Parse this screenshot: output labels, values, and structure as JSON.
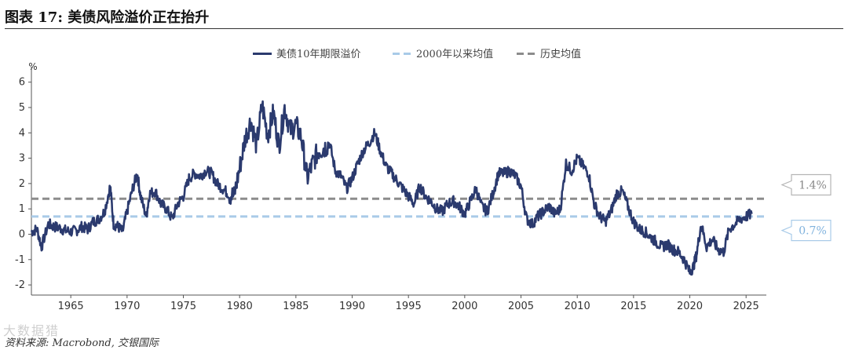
{
  "figure": {
    "title": "图表 17: 美债风险溢价正在抬升",
    "source": "资料来源: Macrobond, 交银国际",
    "watermark": "大数据猎"
  },
  "colors": {
    "series_main": "#2b3a6e",
    "line_2000": "#a9cbe8",
    "line_hist": "#8c8c8c",
    "tag_2000_border": "#a9cbe8",
    "tag_2000_text": "#7fb2dd",
    "tag_hist_border": "#b5b5b5",
    "tag_hist_text": "#888888"
  },
  "chart_data": {
    "type": "line",
    "unit_label": "%",
    "x_ticks": [
      1965,
      1970,
      1975,
      1980,
      1985,
      1990,
      1995,
      2000,
      2005,
      2010,
      2015,
      2020,
      2025
    ],
    "y_ticks": [
      6,
      5,
      4,
      3,
      2,
      1,
      0,
      -1,
      -2
    ],
    "xlim": [
      1961.5,
      2026.8
    ],
    "ylim": [
      -2.4,
      6.3
    ],
    "grid": false,
    "legend_placement": "top-center",
    "series": [
      {
        "name": "美债10年期限溢价",
        "x": [
          1961.5,
          1962,
          1962.4,
          1963,
          1963.5,
          1964,
          1964.5,
          1965,
          1965.5,
          1966,
          1966.5,
          1967,
          1967.5,
          1968,
          1968.5,
          1968.8,
          1969.2,
          1969.6,
          1970,
          1970.5,
          1970.9,
          1971.2,
          1971.7,
          1972,
          1972.5,
          1973,
          1973.5,
          1974,
          1974.5,
          1975,
          1975.5,
          1976,
          1976.5,
          1977,
          1977.5,
          1978,
          1978.5,
          1979,
          1979.5,
          1980,
          1980.5,
          1981,
          1981.5,
          1982,
          1982.5,
          1983,
          1983.5,
          1984,
          1984.5,
          1985,
          1985.5,
          1986,
          1986.5,
          1987,
          1987.5,
          1988,
          1988.5,
          1989,
          1989.5,
          1990,
          1990.5,
          1991,
          1991.5,
          1992,
          1992.5,
          1993,
          1993.5,
          1994,
          1994.5,
          1995,
          1995.5,
          1996,
          1996.5,
          1997,
          1997.5,
          1998,
          1998.5,
          1999,
          1999.5,
          2000,
          2000.5,
          2001,
          2001.5,
          2002,
          2002.5,
          2003,
          2003.5,
          2004,
          2004.5,
          2005,
          2005.5,
          2006,
          2006.5,
          2007,
          2007.5,
          2008,
          2008.5,
          2009,
          2009.5,
          2010,
          2010.5,
          2011,
          2011.5,
          2012,
          2012.5,
          2013,
          2013.5,
          2014,
          2014.5,
          2015,
          2015.5,
          2016,
          2016.5,
          2017,
          2017.5,
          2018,
          2018.5,
          2019,
          2019.5,
          2020,
          2020.3,
          2020.6,
          2021,
          2021.5,
          2022,
          2022.5,
          2023,
          2023.5,
          2024,
          2024.5,
          2025,
          2025.5
        ],
        "values": [
          0.1,
          0.2,
          -0.5,
          0.4,
          0.3,
          0.25,
          0.15,
          0.1,
          0.15,
          0.3,
          0.2,
          0.5,
          0.6,
          0.9,
          1.9,
          0.4,
          0.3,
          0.1,
          0.9,
          1.8,
          2.4,
          1.5,
          0.7,
          1.6,
          1.7,
          1.2,
          1.0,
          0.6,
          1.2,
          1.5,
          2.2,
          2.4,
          2.3,
          2.5,
          2.4,
          2.0,
          1.8,
          1.6,
          1.5,
          2.6,
          3.8,
          4.5,
          3.5,
          5.1,
          3.9,
          4.8,
          3.5,
          5.0,
          4.1,
          4.3,
          3.8,
          2.2,
          2.8,
          3.3,
          3.4,
          3.6,
          2.5,
          2.3,
          1.8,
          2.2,
          2.8,
          3.3,
          3.6,
          4.0,
          3.3,
          2.7,
          2.4,
          2.1,
          1.8,
          1.5,
          1.2,
          1.9,
          1.5,
          1.3,
          1.0,
          0.9,
          1.2,
          1.3,
          1.1,
          0.8,
          1.3,
          1.8,
          1.1,
          0.9,
          1.6,
          2.4,
          2.4,
          2.5,
          2.3,
          1.9,
          0.6,
          0.4,
          0.7,
          0.9,
          1.1,
          0.8,
          1.0,
          2.8,
          2.5,
          3.0,
          2.7,
          2.4,
          1.2,
          0.7,
          0.5,
          0.9,
          1.6,
          1.7,
          1.1,
          0.5,
          0.2,
          0.1,
          -0.1,
          -0.3,
          -0.5,
          -0.4,
          -0.6,
          -0.7,
          -1.0,
          -1.5,
          -1.3,
          -0.8,
          0.4,
          -0.5,
          -0.2,
          -0.6,
          -0.7,
          0.2,
          0.4,
          0.6,
          0.7,
          0.8
        ]
      },
      {
        "name": "2000年以来均值",
        "value": 0.7
      },
      {
        "name": "历史均值",
        "value": 1.4
      }
    ],
    "annotations": [
      {
        "text": "1.4%",
        "value": 1.4
      },
      {
        "text": "0.7%",
        "value": 0.7
      }
    ]
  }
}
